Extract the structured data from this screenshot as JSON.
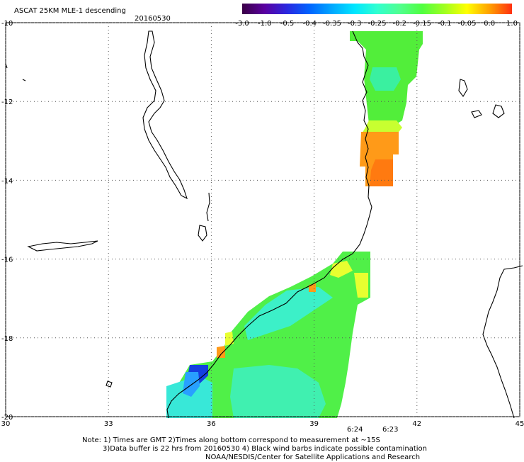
{
  "header": {
    "title": "ASCAT 25KM MLE-1 descending",
    "date": "20160530"
  },
  "colorbar": {
    "tick_labels": [
      "-3.0",
      "-1.0",
      "-0.5",
      "-0.4",
      "-0.35",
      "-0.3",
      "-0.25",
      "-0.2",
      "-0.15",
      "-0.1",
      "-0.05",
      "0.0",
      "1.0"
    ],
    "colors": [
      "#3a0046",
      "#5a00a0",
      "#2a28e0",
      "#0064ff",
      "#00a8ff",
      "#00e6ff",
      "#30ffd0",
      "#50ff90",
      "#50ff40",
      "#a0ff20",
      "#ffff00",
      "#ffa000",
      "#ff3010"
    ]
  },
  "axes": {
    "lon_labels": [
      "30",
      "33",
      "36",
      "39",
      "42",
      "45"
    ],
    "lat_labels": [
      "-10",
      "-12",
      "-14",
      "-16",
      "-18",
      "-20"
    ],
    "lon_range": [
      30,
      45
    ],
    "lat_range": [
      -20,
      -10
    ]
  },
  "pass_times": [
    "6:24",
    "6:23"
  ],
  "time_color": "#cc2200",
  "notes": {
    "line1": "Note: 1) Times are GMT 2)Times along bottom correspond to measurement at ~15S",
    "line2": "3)Data buffer is 22 hrs from 20160530 4) Black wind barbs indicate possible contamination",
    "line3": "NOAA/NESDIS/Center for Satellite Applications and Research"
  },
  "colors": {
    "coast": "#000000",
    "grid": "#888888",
    "orange": "#ff9a10",
    "green": "#4cf040",
    "cyan": "#30f0c8",
    "yellow": "#e8ff30",
    "blue": "#1040e0"
  }
}
